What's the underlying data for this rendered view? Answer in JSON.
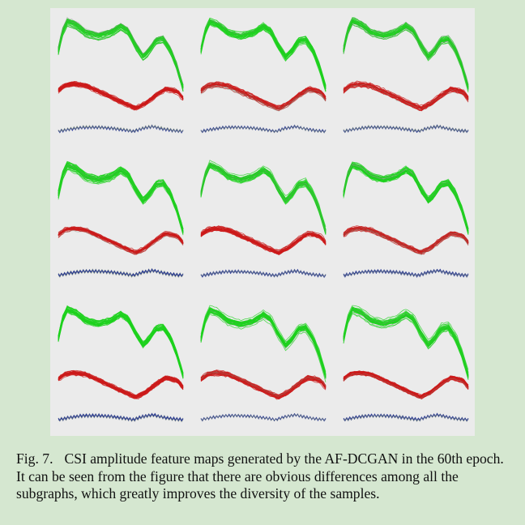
{
  "figure": {
    "label": "Fig. 7.",
    "caption": "CSI amplitude feature maps generated by the AF-DCGAN in the 60th epoch. It can be seen from the figure that there are obvious differences among all the subgraphs, which greatly improves the diversity of the samples.",
    "grid_rows": 3,
    "grid_cols": 3
  },
  "colors": {
    "page_background": "#d5e7d0",
    "panel_background": "#ebebeb",
    "series_green": "#1ed21e",
    "series_red": "#cc1a1a",
    "series_blue": "#1f2e9c",
    "trace_gray": "#7f8f7f"
  }
}
